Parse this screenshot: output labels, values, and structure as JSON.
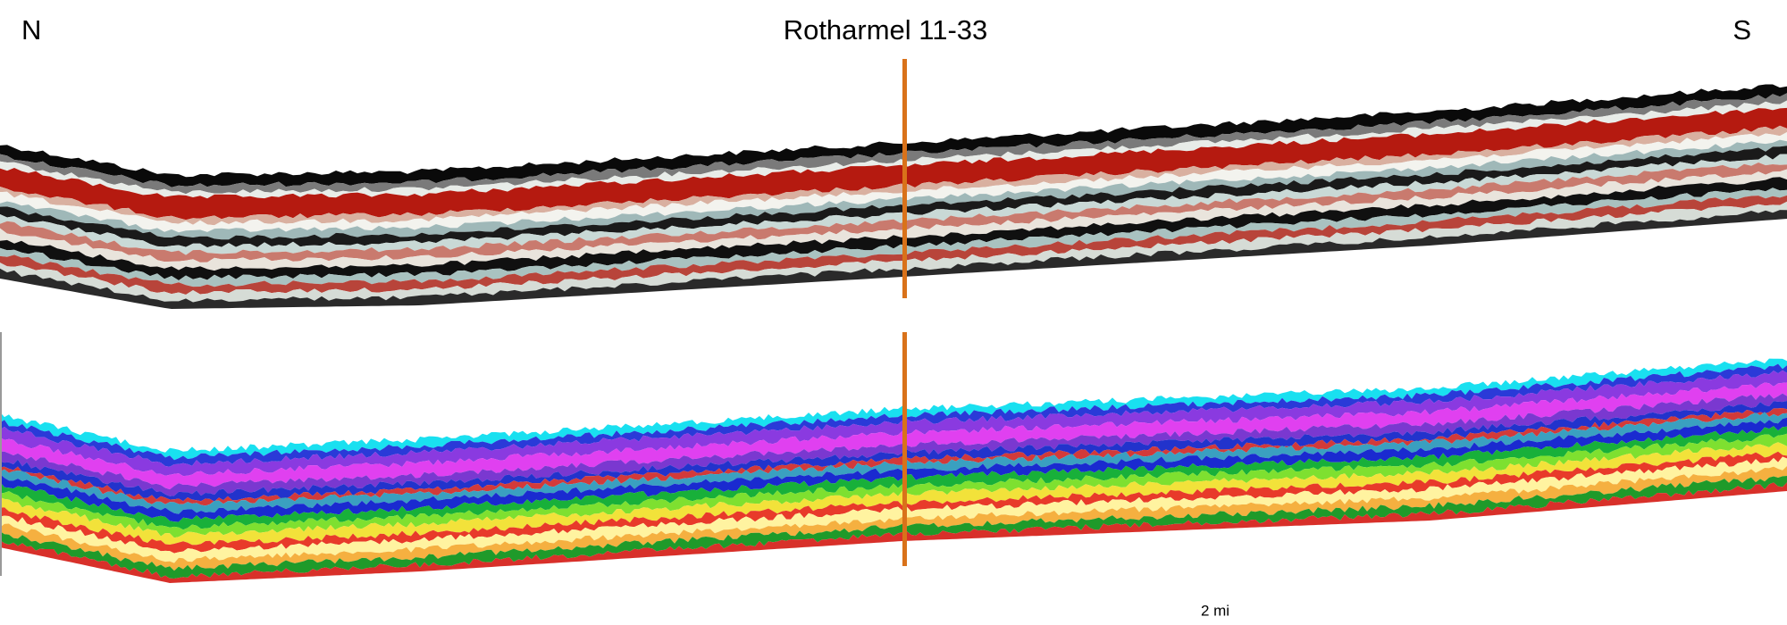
{
  "labels": {
    "left": "N",
    "title": "Rotharmel 11-33",
    "right": "S",
    "scale": "2 mi"
  }
}
